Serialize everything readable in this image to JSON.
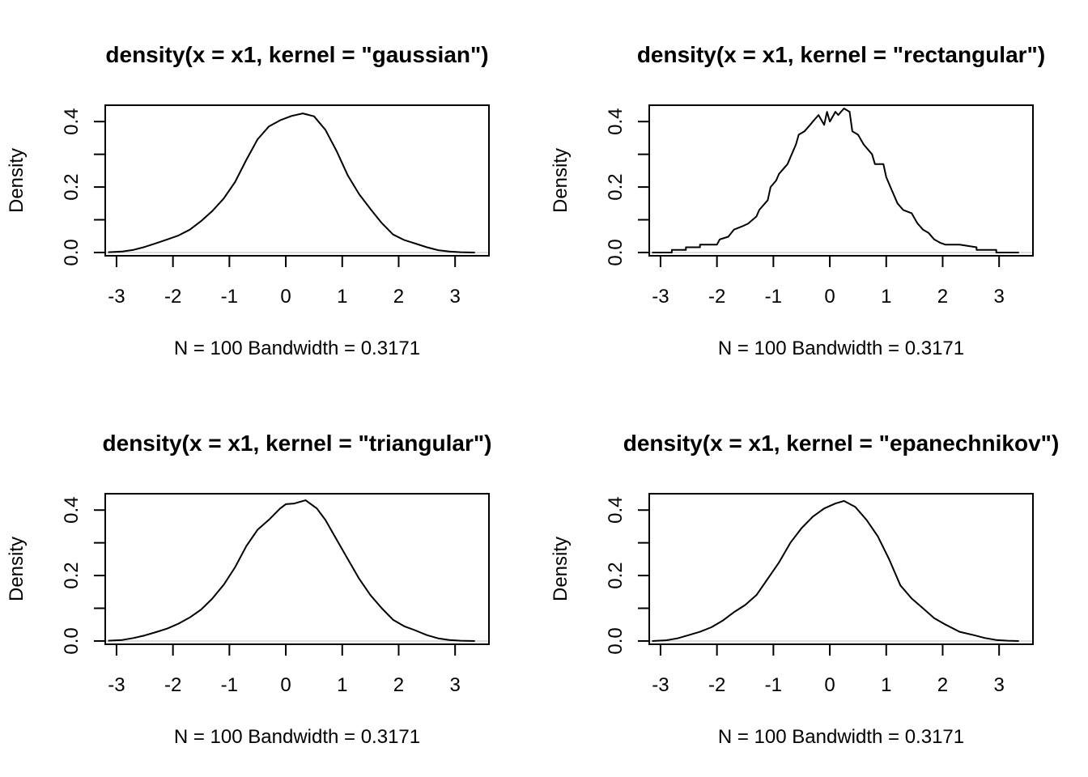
{
  "chart_data": [
    {
      "type": "line",
      "title": "density(x = x1, kernel = \"gaussian\")",
      "xlabel": "N = 100   Bandwidth = 0.3171",
      "ylabel": "Density",
      "xlim": [
        -3.2,
        3.6
      ],
      "ylim": [
        -0.01,
        0.45
      ],
      "x_ticks": [
        "-3",
        "-2",
        "-1",
        "0",
        "1",
        "2",
        "3"
      ],
      "y_ticks": [
        "0.0",
        "0.2",
        "0.4"
      ],
      "zero_line": true,
      "grid": false,
      "x": [
        -3.15,
        -2.9,
        -2.7,
        -2.5,
        -2.3,
        -2.1,
        -1.9,
        -1.7,
        -1.5,
        -1.3,
        -1.1,
        -0.9,
        -0.7,
        -0.5,
        -0.3,
        -0.1,
        0.1,
        0.3,
        0.5,
        0.7,
        0.9,
        1.1,
        1.3,
        1.5,
        1.7,
        1.9,
        2.1,
        2.3,
        2.5,
        2.7,
        2.9,
        3.1,
        3.35
      ],
      "y": [
        0.001,
        0.003,
        0.008,
        0.017,
        0.028,
        0.04,
        0.052,
        0.07,
        0.096,
        0.127,
        0.165,
        0.215,
        0.283,
        0.346,
        0.385,
        0.404,
        0.417,
        0.425,
        0.416,
        0.375,
        0.31,
        0.235,
        0.178,
        0.133,
        0.09,
        0.055,
        0.038,
        0.027,
        0.016,
        0.007,
        0.003,
        0.001,
        0.0
      ]
    },
    {
      "type": "line",
      "title": "density(x = x1, kernel = \"rectangular\")",
      "xlabel": "N = 100   Bandwidth = 0.3171",
      "ylabel": "Density",
      "xlim": [
        -3.2,
        3.6
      ],
      "ylim": [
        -0.01,
        0.45
      ],
      "x_ticks": [
        "-3",
        "-2",
        "-1",
        "0",
        "1",
        "2",
        "3"
      ],
      "y_ticks": [
        "0.0",
        "0.2",
        "0.4"
      ],
      "zero_line": true,
      "grid": false,
      "x": [
        -3.15,
        -2.8,
        -2.8,
        -2.55,
        -2.55,
        -2.3,
        -2.3,
        -2.0,
        -1.95,
        -1.8,
        -1.7,
        -1.55,
        -1.45,
        -1.3,
        -1.25,
        -1.1,
        -1.05,
        -0.95,
        -0.9,
        -0.8,
        -0.75,
        -0.6,
        -0.55,
        -0.45,
        -0.35,
        -0.3,
        -0.2,
        -0.1,
        -0.05,
        0.0,
        0.1,
        0.15,
        0.25,
        0.35,
        0.4,
        0.5,
        0.6,
        0.75,
        0.8,
        0.95,
        1.0,
        1.1,
        1.2,
        1.3,
        1.45,
        1.55,
        1.65,
        1.75,
        1.85,
        1.95,
        2.05,
        2.3,
        2.6,
        2.6,
        2.95,
        2.95,
        3.35
      ],
      "y": [
        0.0,
        0.0,
        0.008,
        0.008,
        0.016,
        0.016,
        0.024,
        0.024,
        0.04,
        0.048,
        0.07,
        0.08,
        0.088,
        0.11,
        0.13,
        0.16,
        0.2,
        0.22,
        0.24,
        0.26,
        0.27,
        0.33,
        0.36,
        0.37,
        0.39,
        0.4,
        0.42,
        0.39,
        0.43,
        0.4,
        0.43,
        0.42,
        0.44,
        0.43,
        0.37,
        0.36,
        0.33,
        0.3,
        0.27,
        0.27,
        0.23,
        0.19,
        0.15,
        0.13,
        0.12,
        0.09,
        0.07,
        0.06,
        0.04,
        0.03,
        0.024,
        0.024,
        0.016,
        0.008,
        0.008,
        0.0,
        0.0
      ]
    },
    {
      "type": "line",
      "title": "density(x = x1, kernel = \"triangular\")",
      "xlabel": "N = 100   Bandwidth = 0.3171",
      "ylabel": "Density",
      "xlim": [
        -3.2,
        3.6
      ],
      "ylim": [
        -0.01,
        0.45
      ],
      "x_ticks": [
        "-3",
        "-2",
        "-1",
        "0",
        "1",
        "2",
        "3"
      ],
      "y_ticks": [
        "0.0",
        "0.2",
        "0.4"
      ],
      "zero_line": true,
      "grid": false,
      "x": [
        -3.15,
        -2.9,
        -2.7,
        -2.5,
        -2.3,
        -2.1,
        -1.9,
        -1.7,
        -1.5,
        -1.3,
        -1.1,
        -0.9,
        -0.7,
        -0.5,
        -0.3,
        -0.1,
        0.0,
        0.15,
        0.35,
        0.55,
        0.7,
        0.9,
        1.1,
        1.3,
        1.5,
        1.7,
        1.9,
        2.1,
        2.3,
        2.5,
        2.7,
        2.9,
        3.1,
        3.35
      ],
      "y": [
        0.001,
        0.003,
        0.009,
        0.017,
        0.027,
        0.038,
        0.053,
        0.072,
        0.096,
        0.13,
        0.172,
        0.225,
        0.29,
        0.34,
        0.37,
        0.405,
        0.418,
        0.42,
        0.43,
        0.405,
        0.37,
        0.31,
        0.25,
        0.19,
        0.14,
        0.1,
        0.065,
        0.045,
        0.032,
        0.018,
        0.008,
        0.003,
        0.001,
        0.0
      ]
    },
    {
      "type": "line",
      "title": "density(x = x1, kernel = \"epanechnikov\")",
      "xlabel": "N = 100   Bandwidth = 0.3171",
      "ylabel": "Density",
      "xlim": [
        -3.2,
        3.6
      ],
      "ylim": [
        -0.01,
        0.45
      ],
      "x_ticks": [
        "-3",
        "-2",
        "-1",
        "0",
        "1",
        "2",
        "3"
      ],
      "y_ticks": [
        "0.0",
        "0.2",
        "0.4"
      ],
      "zero_line": true,
      "grid": false,
      "x": [
        -3.15,
        -2.9,
        -2.7,
        -2.5,
        -2.3,
        -2.1,
        -1.9,
        -1.7,
        -1.5,
        -1.3,
        -1.1,
        -0.9,
        -0.7,
        -0.5,
        -0.3,
        -0.1,
        0.1,
        0.25,
        0.45,
        0.65,
        0.85,
        1.05,
        1.25,
        1.45,
        1.65,
        1.85,
        2.05,
        2.3,
        2.55,
        2.75,
        2.95,
        3.15,
        3.35
      ],
      "y": [
        0.0,
        0.002,
        0.008,
        0.018,
        0.028,
        0.042,
        0.062,
        0.088,
        0.11,
        0.14,
        0.19,
        0.24,
        0.3,
        0.345,
        0.38,
        0.405,
        0.42,
        0.428,
        0.41,
        0.37,
        0.32,
        0.25,
        0.17,
        0.13,
        0.1,
        0.07,
        0.05,
        0.028,
        0.018,
        0.009,
        0.003,
        0.001,
        0.0
      ]
    }
  ]
}
